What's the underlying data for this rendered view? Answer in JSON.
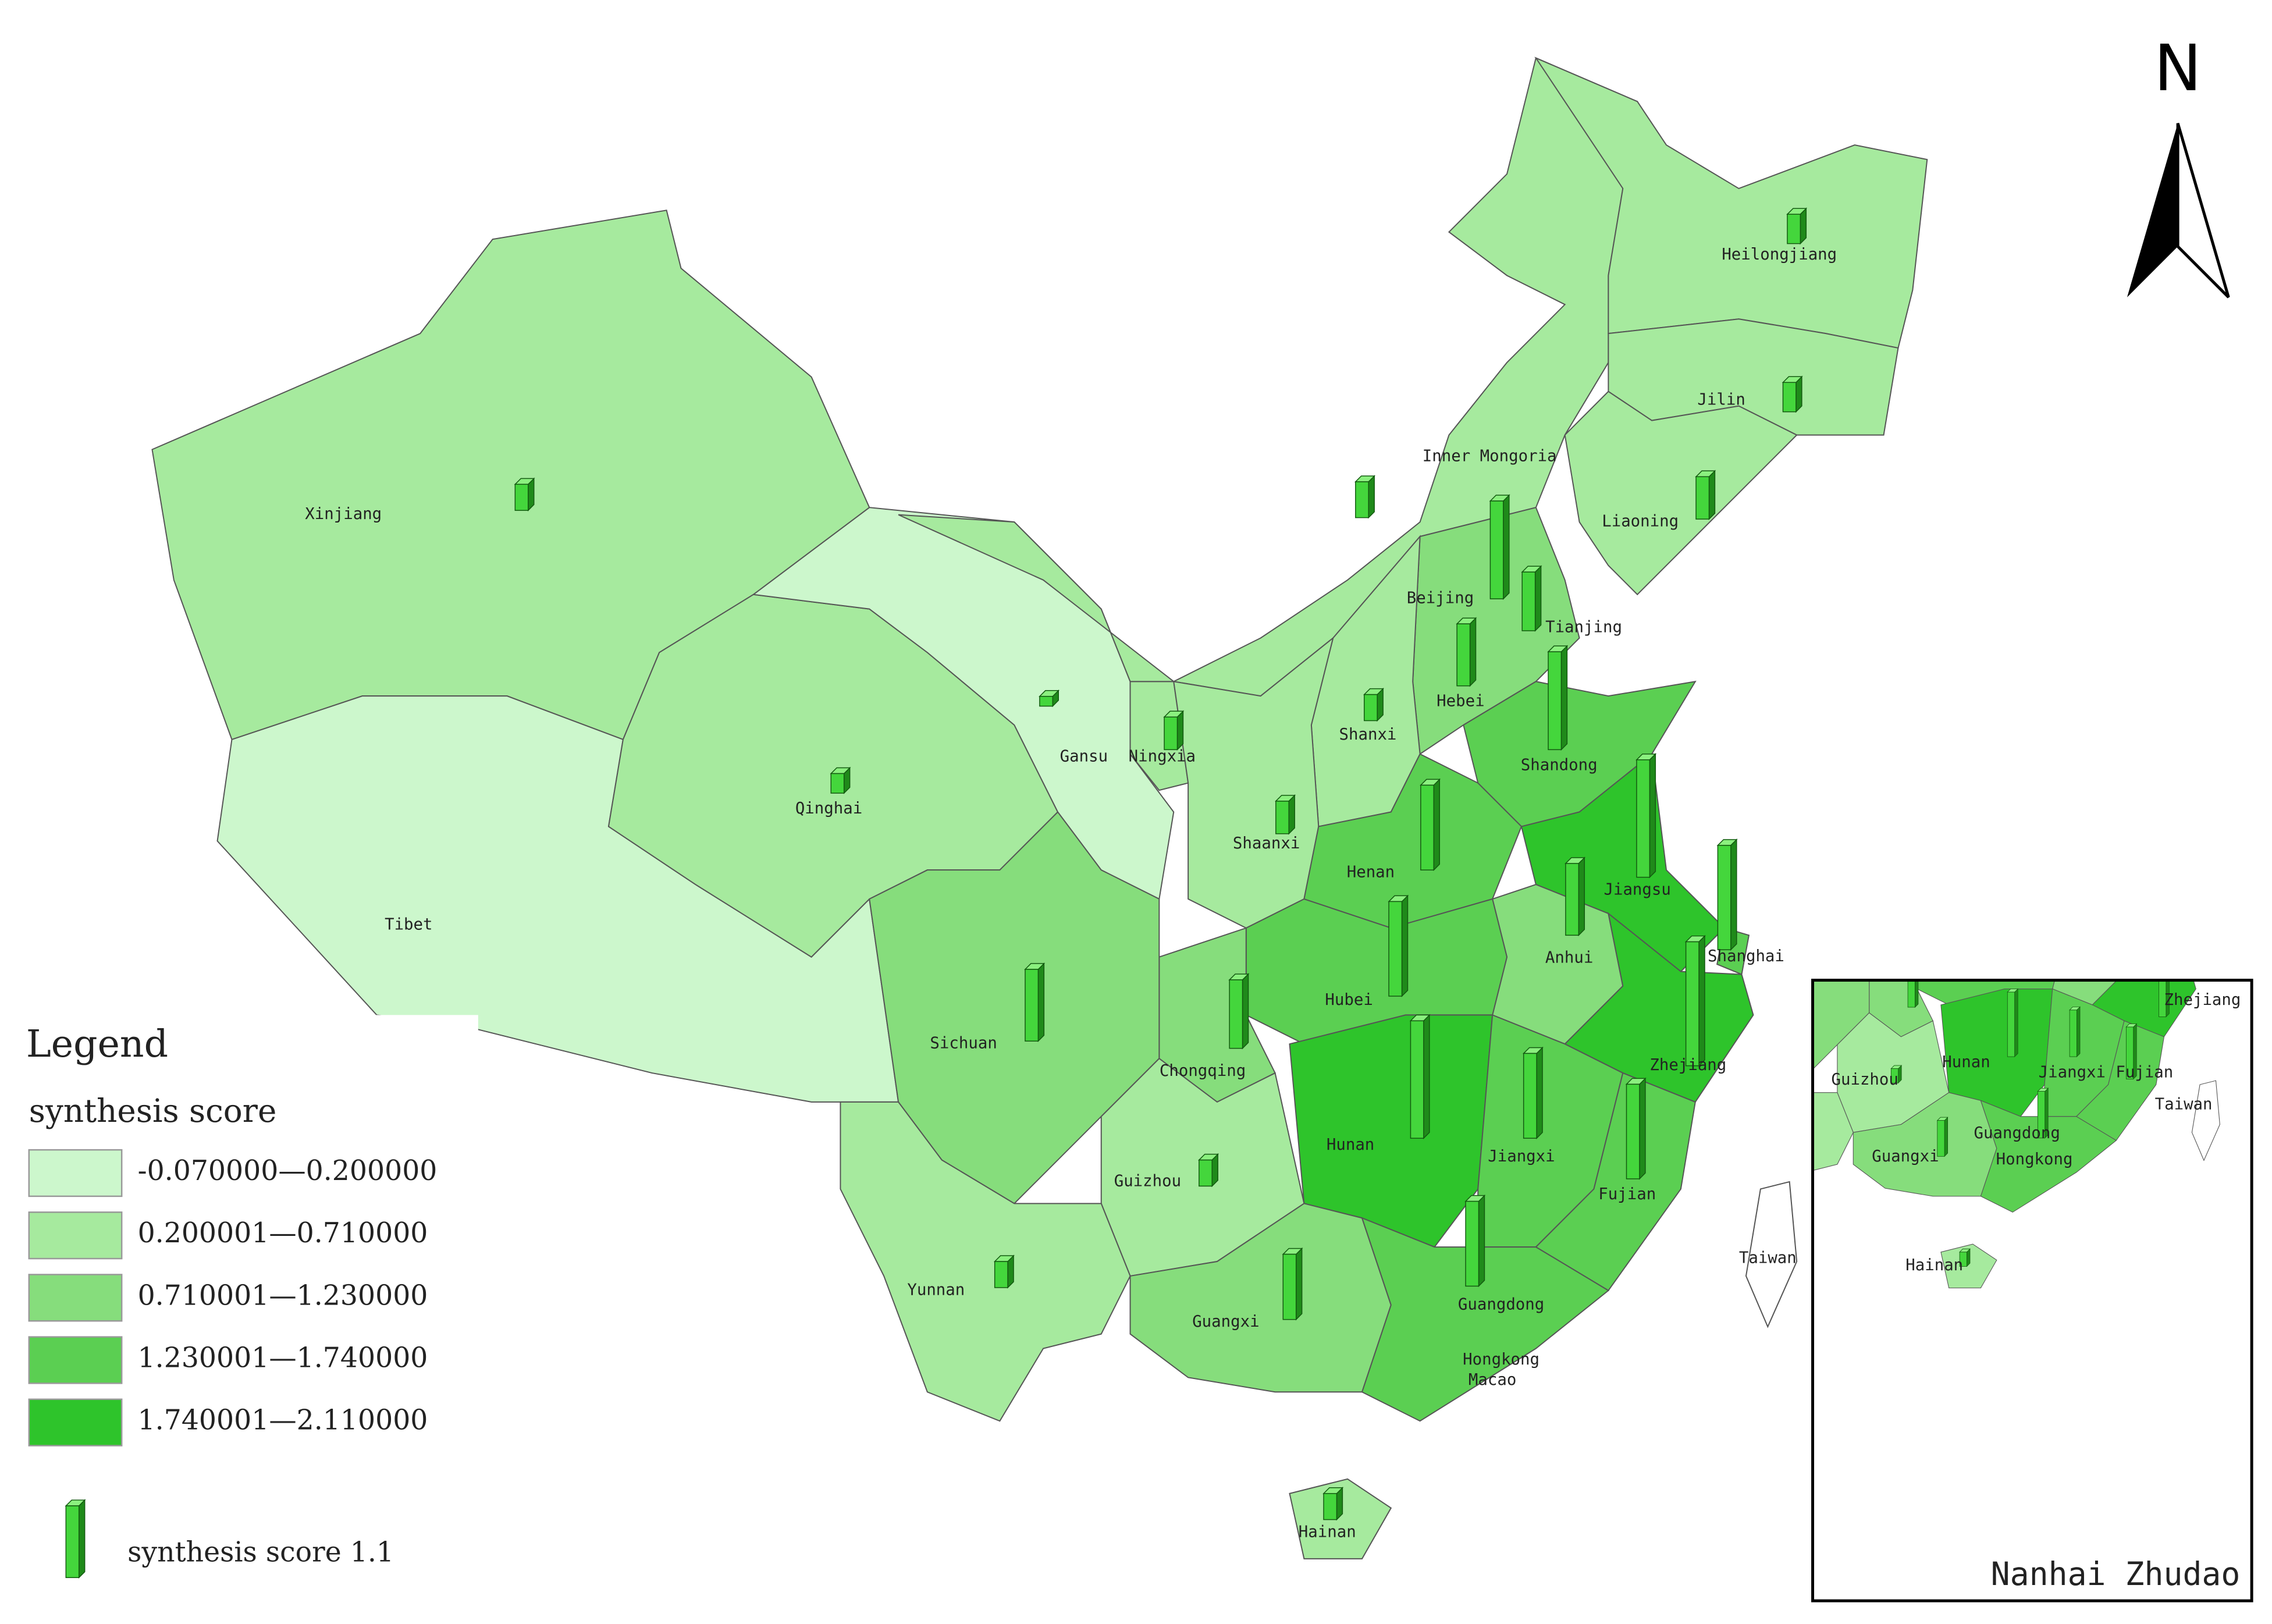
{
  "legend": {
    "title": "Legend",
    "subtitle": "synthesis score",
    "classes": [
      {
        "label": "-0.070000—0.200000",
        "color": "#ccf7cc"
      },
      {
        "label": "0.200001—0.710000",
        "color": "#a6ea9e"
      },
      {
        "label": "0.710001—1.230000",
        "color": "#86dd7c"
      },
      {
        "label": "1.230001—1.740000",
        "color": "#5bcf52"
      },
      {
        "label": "1.740001—2.110000",
        "color": "#2ec42b"
      }
    ],
    "bar_label": "synthesis score 1.1",
    "bar_value": 1.1
  },
  "north": "N",
  "provinces": [
    {
      "name": "Xinjiang",
      "class": 1,
      "score": 0.4
    },
    {
      "name": "Tibet",
      "class": 0,
      "score": null
    },
    {
      "name": "Qinghai",
      "class": 1,
      "score": 0.3
    },
    {
      "name": "Gansu",
      "class": 0,
      "score": 0.15
    },
    {
      "name": "Ningxia",
      "class": 1,
      "score": 0.5
    },
    {
      "name": "Inner Mongoria",
      "class": 1,
      "score": 0.55
    },
    {
      "name": "Heilongjiang",
      "class": 1,
      "score": 0.45
    },
    {
      "name": "Jilin",
      "class": 1,
      "score": 0.45
    },
    {
      "name": "Liaoning",
      "class": 1,
      "score": 0.65
    },
    {
      "name": "Beijing",
      "class": 3,
      "score": 1.5
    },
    {
      "name": "Tianjing",
      "class": 2,
      "score": 0.9
    },
    {
      "name": "Hebei",
      "class": 2,
      "score": 0.95
    },
    {
      "name": "Shanxi",
      "class": 1,
      "score": 0.4
    },
    {
      "name": "Shaanxi",
      "class": 1,
      "score": 0.5
    },
    {
      "name": "Shandong",
      "class": 3,
      "score": 1.5
    },
    {
      "name": "Henan",
      "class": 3,
      "score": 1.3
    },
    {
      "name": "Jiangsu",
      "class": 4,
      "score": 1.8
    },
    {
      "name": "Anhui",
      "class": 2,
      "score": 1.1
    },
    {
      "name": "Shanghai",
      "class": 3,
      "score": 1.6
    },
    {
      "name": "Hubei",
      "class": 3,
      "score": 1.45
    },
    {
      "name": "Zhejiang",
      "class": 4,
      "score": 1.9
    },
    {
      "name": "Chongqing",
      "class": 2,
      "score": 1.05
    },
    {
      "name": "Sichuan",
      "class": 2,
      "score": 1.1
    },
    {
      "name": "Hunan",
      "class": 4,
      "score": 1.8
    },
    {
      "name": "Jiangxi",
      "class": 3,
      "score": 1.3
    },
    {
      "name": "Fujian",
      "class": 3,
      "score": 1.45
    },
    {
      "name": "Guizhou",
      "class": 1,
      "score": 0.4
    },
    {
      "name": "Yunnan",
      "class": 1,
      "score": 0.4
    },
    {
      "name": "Guangxi",
      "class": 2,
      "score": 1.0
    },
    {
      "name": "Guangdong",
      "class": 3,
      "score": 1.3
    },
    {
      "name": "Hainan",
      "class": 1,
      "score": 0.4
    }
  ],
  "other_labels": [
    "Taiwan",
    "Hongkong",
    "Macao"
  ],
  "inset": {
    "title": "Nanhai Zhudao",
    "labels": [
      "Guizhou",
      "Hunan",
      "Jiangxi",
      "Fujian",
      "Zhejiang",
      "Taiwan",
      "Guangxi",
      "Guangdong",
      "Hongkong",
      "Hainan"
    ]
  }
}
